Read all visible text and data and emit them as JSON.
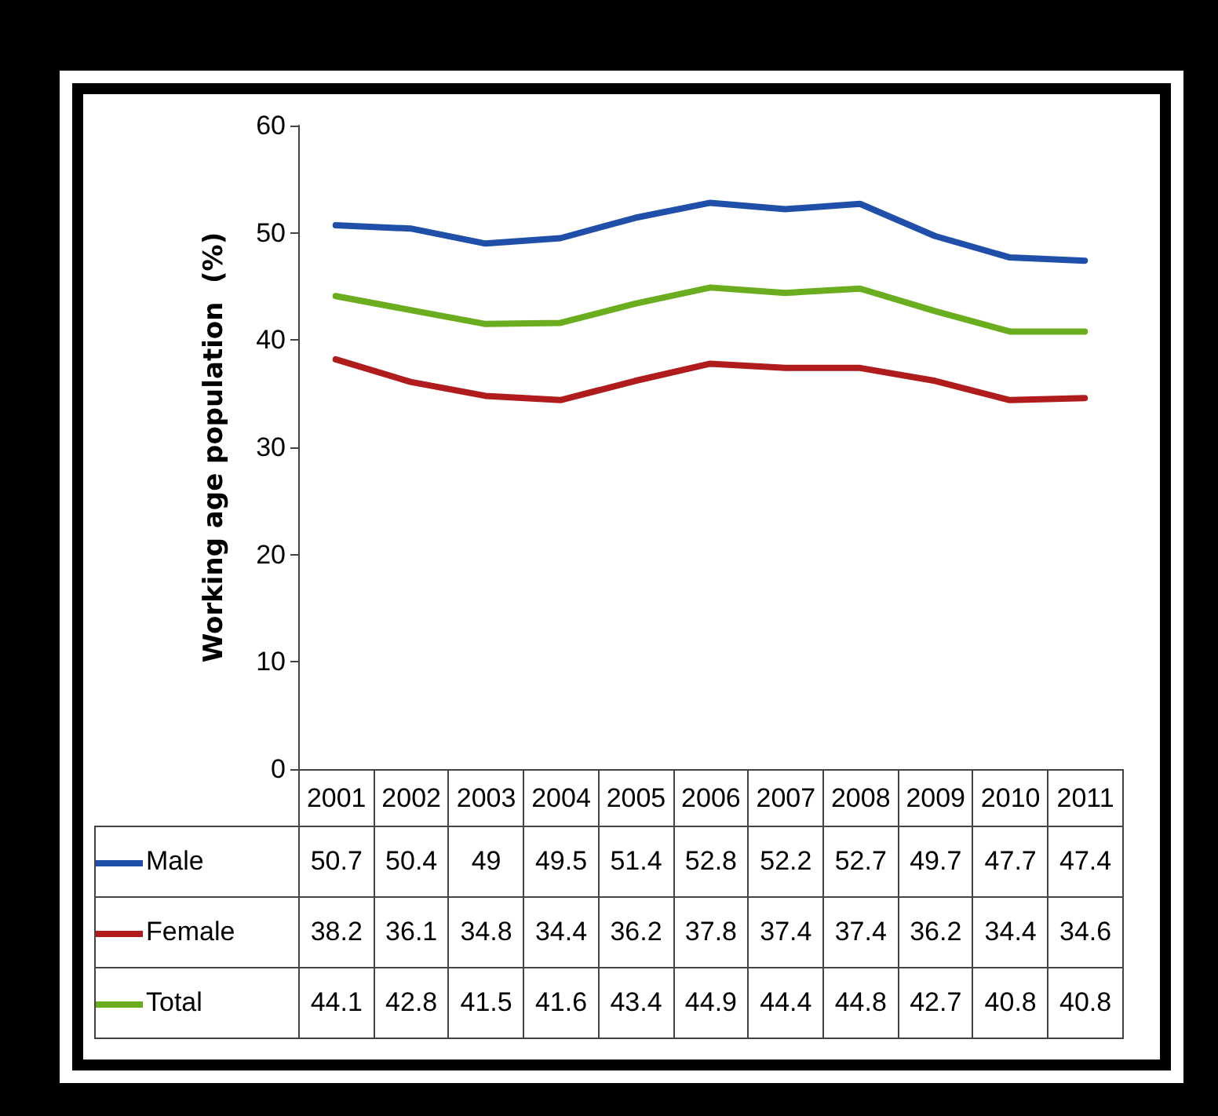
{
  "chart_data": {
    "type": "line",
    "ylabel": "Working age population  (%)",
    "categories": [
      "2001",
      "2002",
      "2003",
      "2004",
      "2005",
      "2006",
      "2007",
      "2008",
      "2009",
      "2010",
      "2011"
    ],
    "series": [
      {
        "name": "Male",
        "color": "#1f4fa8",
        "values": [
          50.7,
          50.4,
          49,
          49.5,
          51.4,
          52.8,
          52.2,
          52.7,
          49.7,
          47.7,
          47.4
        ]
      },
      {
        "name": "Female",
        "color": "#b01c1c",
        "values": [
          38.2,
          36.1,
          34.8,
          34.4,
          36.2,
          37.8,
          37.4,
          37.4,
          36.2,
          34.4,
          34.6
        ]
      },
      {
        "name": "Total",
        "color": "#6aae1f",
        "values": [
          44.1,
          42.8,
          41.5,
          41.6,
          43.4,
          44.9,
          44.4,
          44.8,
          42.7,
          40.8,
          40.8
        ]
      }
    ],
    "ylim": [
      0,
      60
    ],
    "yticks": [
      0,
      10,
      20,
      30,
      40,
      50,
      60
    ],
    "grid": false,
    "legend": "bottom",
    "marker": "none",
    "line_style": "solid",
    "data_labels": true
  }
}
